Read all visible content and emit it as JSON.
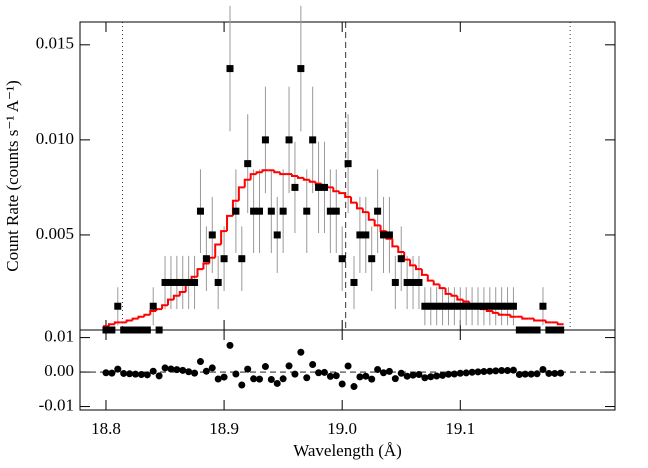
{
  "chart_data": [
    {
      "type": "spectrum",
      "ylabel": "Count Rate (counts s⁻¹ A⁻¹)",
      "xlim": [
        18.778,
        19.231
      ],
      "ylim": [
        0,
        0.0162
      ],
      "xticks": [
        18.8,
        18.9,
        {
          "value": 19,
          "label": "19.0"
        },
        19.1
      ],
      "yticks": [
        0.005,
        {
          "value": 0.01,
          "label": "0.010"
        },
        0.015
      ],
      "bin_width": 0.005,
      "x": [
        18.8,
        18.805,
        18.81,
        18.815,
        18.82,
        18.825,
        18.83,
        18.835,
        18.84,
        18.845,
        18.85,
        18.855,
        18.86,
        18.865,
        18.87,
        18.875,
        18.88,
        18.885,
        18.89,
        18.895,
        18.9,
        18.905,
        18.91,
        18.915,
        18.92,
        18.925,
        18.93,
        18.935,
        18.94,
        18.945,
        18.95,
        18.955,
        18.96,
        18.965,
        18.97,
        18.975,
        18.98,
        18.985,
        18.99,
        18.995,
        19.0,
        19.005,
        19.01,
        19.015,
        19.02,
        19.025,
        19.03,
        19.035,
        19.04,
        19.045,
        19.05,
        19.055,
        19.06,
        19.065,
        19.07,
        19.075,
        19.08,
        19.085,
        19.09,
        19.095,
        19.1,
        19.105,
        19.11,
        19.115,
        19.12,
        19.125,
        19.13,
        19.135,
        19.14,
        19.145,
        19.15,
        19.155,
        19.16,
        19.165,
        19.17,
        19.175,
        19.18,
        19.185
      ],
      "values": [
        0,
        0,
        0.00125,
        0,
        0,
        0,
        0,
        0,
        0.00125,
        0,
        0.0025,
        0.0025,
        0.0025,
        0.0025,
        0.0025,
        0.0025,
        0.00625,
        0.00375,
        0.005,
        0.0025,
        0.00375,
        0.01375,
        0.00625,
        0.00375,
        0.00875,
        0.00625,
        0.00625,
        0.01,
        0.00625,
        0.005,
        0.00625,
        0.01,
        0.0075,
        0.01375,
        0.00625,
        0.01,
        0.0075,
        0.0075,
        0.00625,
        0.00625,
        0.00375,
        0.00875,
        0.0025,
        0.005,
        0.005,
        0.00375,
        0.00625,
        0.005,
        0.005,
        0.0025,
        0.00375,
        0.0025,
        0.0025,
        0.0025,
        0.00125,
        0.00125,
        0.00125,
        0.00125,
        0.00125,
        0.00125,
        0.00125,
        0.00125,
        0.00125,
        0.00125,
        0.00125,
        0.00125,
        0.00125,
        0.00125,
        0.00125,
        0.00125,
        0,
        0,
        0,
        0,
        0.00125,
        0,
        0,
        0
      ],
      "errors": [
        0,
        0,
        0.001,
        0,
        0,
        0,
        0,
        0,
        0.001,
        0,
        0.0014,
        0.0014,
        0.0014,
        0.0014,
        0.0014,
        0.0014,
        0.0022,
        0.0017,
        0.002,
        0.0014,
        0.0017,
        0.0033,
        0.0022,
        0.0017,
        0.0026,
        0.0022,
        0.0022,
        0.0028,
        0.0022,
        0.002,
        0.0022,
        0.0028,
        0.0024,
        0.0033,
        0.0022,
        0.0028,
        0.0024,
        0.0024,
        0.0022,
        0.0022,
        0.0017,
        0.0026,
        0.0014,
        0.002,
        0.002,
        0.0017,
        0.0022,
        0.002,
        0.002,
        0.0014,
        0.0017,
        0.0014,
        0.0014,
        0.0014,
        0.001,
        0.001,
        0.001,
        0.001,
        0.001,
        0.001,
        0.001,
        0.001,
        0.001,
        0.001,
        0.001,
        0.001,
        0.001,
        0.001,
        0.001,
        0.001,
        0,
        0,
        0,
        0,
        0.001,
        0,
        0,
        0
      ],
      "model": [
        0.0002,
        0.0003,
        0.0004,
        0.0004,
        0.0005,
        0.0006,
        0.0007,
        0.0008,
        0.001,
        0.0011,
        0.0013,
        0.0016,
        0.0018,
        0.002,
        0.0024,
        0.0028,
        0.0032,
        0.0035,
        0.0038,
        0.0045,
        0.0052,
        0.006,
        0.0068,
        0.0075,
        0.0079,
        0.0082,
        0.0083,
        0.0084,
        0.0084,
        0.0083,
        0.0082,
        0.0082,
        0.0081,
        0.008,
        0.0079,
        0.0078,
        0.0077,
        0.0076,
        0.0075,
        0.0073,
        0.0072,
        0.007,
        0.0067,
        0.0064,
        0.0062,
        0.0058,
        0.0055,
        0.0052,
        0.0048,
        0.0044,
        0.0041,
        0.0037,
        0.0034,
        0.0032,
        0.0029,
        0.0026,
        0.0024,
        0.0022,
        0.0019,
        0.0018,
        0.0016,
        0.0015,
        0.0013,
        0.0012,
        0.0011,
        0.001,
        0.0009,
        0.0008,
        0.0008,
        0.0007,
        0.0007,
        0.0006,
        0.0006,
        0.0005,
        0.0005,
        0.0004,
        0.0004,
        0.0003
      ],
      "color": "#000000",
      "model_color": "#ff0000",
      "vlines": [
        {
          "value": 18.814,
          "style": "dotted"
        },
        {
          "value": 19.003,
          "style": "dashed"
        },
        {
          "value": 19.193,
          "style": "dotted"
        }
      ]
    },
    {
      "type": "residual",
      "xlabel": "Wavelength (Å)",
      "xlim": [
        18.778,
        19.231
      ],
      "ylim": [
        -0.011,
        0.0122
      ],
      "xticks": [
        18.8,
        18.9,
        {
          "value": 19,
          "label": "19.0"
        },
        19.1
      ],
      "yticks": [
        -0.01,
        {
          "value": 0,
          "label": "0.00"
        },
        0.01
      ],
      "zero_line": true,
      "x": [
        18.8,
        18.805,
        18.81,
        18.815,
        18.82,
        18.825,
        18.83,
        18.835,
        18.84,
        18.845,
        18.85,
        18.855,
        18.86,
        18.865,
        18.87,
        18.875,
        18.88,
        18.885,
        18.89,
        18.895,
        18.9,
        18.905,
        18.91,
        18.915,
        18.92,
        18.925,
        18.93,
        18.935,
        18.94,
        18.945,
        18.95,
        18.955,
        18.96,
        18.965,
        18.97,
        18.975,
        18.98,
        18.985,
        18.99,
        18.995,
        19.0,
        19.005,
        19.01,
        19.015,
        19.02,
        19.025,
        19.03,
        19.035,
        19.04,
        19.045,
        19.05,
        19.055,
        19.06,
        19.065,
        19.07,
        19.075,
        19.08,
        19.085,
        19.09,
        19.095,
        19.1,
        19.105,
        19.11,
        19.115,
        19.12,
        19.125,
        19.13,
        19.135,
        19.14,
        19.145,
        19.15,
        19.155,
        19.16,
        19.165,
        19.17,
        19.175,
        19.18,
        19.185
      ],
      "values": [
        -0.0002,
        -0.0003,
        0.00085,
        -0.0004,
        -0.0005,
        -0.0006,
        -0.0007,
        -0.0008,
        0.00025,
        -0.0011,
        0.0012,
        0.0009,
        0.0007,
        0.0005,
        0.0001,
        -0.0003,
        0.00305,
        0.00025,
        0.0012,
        -0.002,
        -0.00145,
        0.00775,
        -0.00055,
        -0.00375,
        0.00085,
        -0.00195,
        -0.00205,
        0.0016,
        -0.00215,
        -0.0033,
        -0.00195,
        0.0018,
        -0.0006,
        0.00575,
        -0.00165,
        0.0022,
        -0.0002,
        -0.0001,
        -0.00125,
        -0.00105,
        -0.00345,
        0.00175,
        -0.0042,
        -0.0014,
        -0.0012,
        -0.00205,
        0.00075,
        -0.0002,
        0.0002,
        -0.0019,
        -0.00035,
        -0.0012,
        -0.0009,
        -0.0007,
        -0.00165,
        -0.00135,
        -0.00115,
        -0.00095,
        -0.00065,
        -0.00055,
        -0.00035,
        -0.00025,
        -5e-05,
        5e-05,
        0.00015,
        0.00025,
        0.00035,
        0.00045,
        0.00045,
        0.00055,
        -0.0007,
        -0.0006,
        -0.0006,
        -0.0005,
        0.00075,
        -0.0004,
        -0.0004,
        -0.0003
      ],
      "color": "#000000"
    }
  ]
}
